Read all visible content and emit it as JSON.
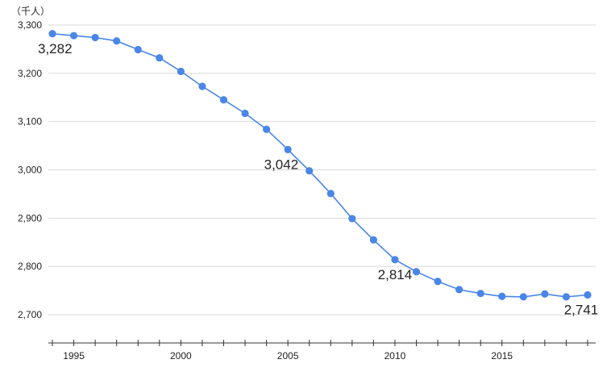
{
  "chart_data": {
    "type": "line",
    "unit_label": "（千人）",
    "x": [
      1994,
      1995,
      1996,
      1997,
      1998,
      1999,
      2000,
      2001,
      2002,
      2003,
      2004,
      2005,
      2006,
      2007,
      2008,
      2009,
      2010,
      2011,
      2012,
      2013,
      2014,
      2015,
      2016,
      2017,
      2018,
      2019
    ],
    "series": [
      {
        "name": "",
        "color": "#4a86e8",
        "values": [
          3282,
          3278,
          3274,
          3267,
          3249,
          3232,
          3204,
          3173,
          3145,
          3117,
          3084,
          3042,
          2998,
          2951,
          2899,
          2855,
          2814,
          2789,
          2769,
          2752,
          2744,
          2738,
          2737,
          2743,
          2737,
          2741
        ]
      }
    ],
    "data_labels": [
      {
        "year": 1994,
        "text": "3,282",
        "placement": "below-right"
      },
      {
        "year": 2005,
        "text": "3,042",
        "placement": "below-left"
      },
      {
        "year": 2010,
        "text": "2,814",
        "placement": "below"
      },
      {
        "year": 2019,
        "text": "2,741",
        "placement": "below"
      }
    ],
    "yticks": [
      2700,
      2800,
      2900,
      3000,
      3100,
      3200,
      3300
    ],
    "ytick_labels": [
      "2,700",
      "2,800",
      "2,900",
      "3,000",
      "3,100",
      "3,200",
      "3,300"
    ],
    "xticks": [
      1995,
      2000,
      2005,
      2010,
      2015
    ],
    "xtick_labels": [
      "1995",
      "2000",
      "2005",
      "2010",
      "2015"
    ],
    "ylim": [
      2700,
      3300
    ],
    "xlim": [
      1994,
      2019
    ],
    "grid": true,
    "legend": "none"
  }
}
